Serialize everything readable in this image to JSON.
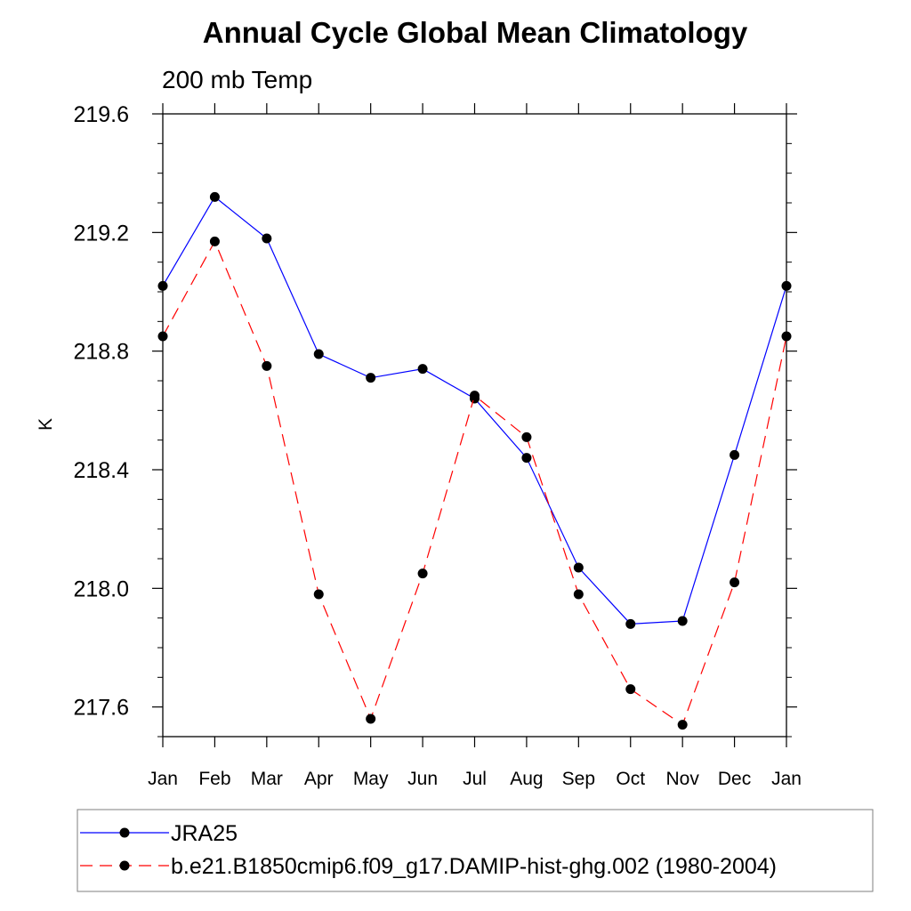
{
  "chart_data": {
    "type": "line",
    "title": "Annual Cycle Global Mean Climatology",
    "subtitle": "200 mb Temp",
    "xlabel": "",
    "ylabel": "K",
    "categories": [
      "Jan",
      "Feb",
      "Mar",
      "Apr",
      "May",
      "Jun",
      "Jul",
      "Aug",
      "Sep",
      "Oct",
      "Nov",
      "Dec",
      "Jan"
    ],
    "ylim": [
      217.5,
      219.6
    ],
    "yticks": [
      "217.6",
      "218.0",
      "218.4",
      "218.8",
      "219.2",
      "219.6"
    ],
    "ytick_values": [
      217.6,
      218.0,
      218.4,
      218.8,
      219.2,
      219.6
    ],
    "legend_position": "bottom",
    "grid": false,
    "series": [
      {
        "name": "JRA25",
        "color": "#0000ff",
        "dash": "solid",
        "marker": "circle",
        "values": [
          219.02,
          219.32,
          219.18,
          218.79,
          218.71,
          218.74,
          218.64,
          218.44,
          218.07,
          217.88,
          217.89,
          218.45,
          219.02
        ]
      },
      {
        "name": "b.e21.B1850cmip6.f09_g17.DAMIP-hist-ghg.002 (1980-2004)",
        "color": "#ff0000",
        "dash": "dashed",
        "marker": "circle",
        "values": [
          218.85,
          219.17,
          218.75,
          217.98,
          217.56,
          218.05,
          218.65,
          218.51,
          217.98,
          217.66,
          217.54,
          218.02,
          218.85
        ]
      }
    ]
  }
}
